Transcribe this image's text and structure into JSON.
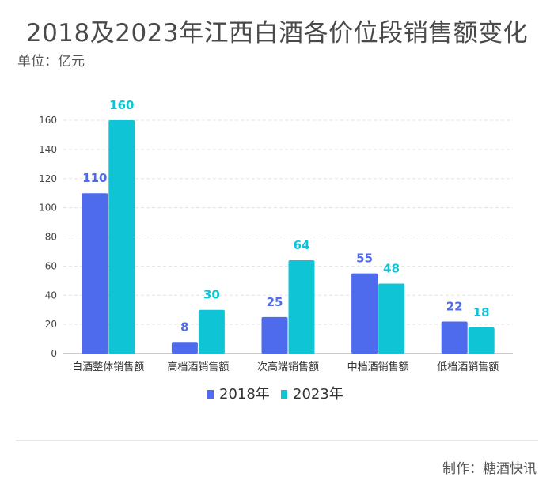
{
  "title": "2018及2023年江西白酒各价位段销售额变化",
  "unit_label": "单位：亿元",
  "credit": "制作：糖酒快讯",
  "colors": {
    "2018": "#4f6bed",
    "2023": "#0fc4d4",
    "grid": "#e3e3e3",
    "axis": "#9a9a9a"
  },
  "chart_data": {
    "type": "bar",
    "title": "2018及2023年江西白酒各价位段销售额变化",
    "ylabel": "单位：亿元",
    "xlabel": "",
    "categories": [
      "白酒整体销售额",
      "高档酒销售额",
      "次高端销售额",
      "中档酒销售额",
      "低档酒销售额"
    ],
    "series": [
      {
        "name": "2018年",
        "values": [
          110,
          8,
          25,
          55,
          22
        ]
      },
      {
        "name": "2023年",
        "values": [
          160,
          30,
          64,
          48,
          18
        ]
      }
    ],
    "ylim": [
      0,
      160
    ],
    "yticks": [
      0,
      20,
      40,
      60,
      80,
      100,
      120,
      140,
      160
    ],
    "grid": true,
    "legend_position": "bottom-center",
    "data_labels": true
  }
}
